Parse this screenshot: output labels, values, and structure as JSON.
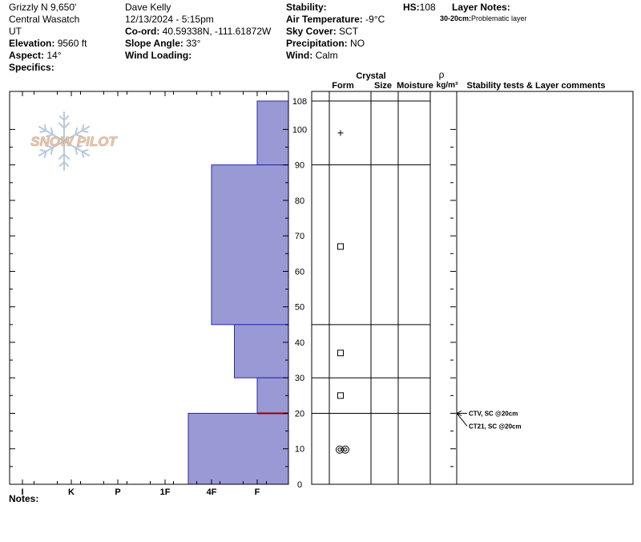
{
  "header": {
    "location": "Grizzly N 9,650'",
    "range": "Central Wasatch",
    "state": "UT",
    "elevation_label": "Elevation:",
    "elevation_value": "9560 ft",
    "aspect_label": "Aspect:",
    "aspect_value": "14°",
    "specifics_label": "Specifics:",
    "observer": "Dave Kelly",
    "datetime": "12/13/2024 - 5:15pm",
    "coord_label": "Co-ord:",
    "coord_value": "40.59338N, -111.61872W",
    "slope_label": "Slope Angle:",
    "slope_value": "33°",
    "wind_loading_label": "Wind Loading:",
    "stability_label": "Stability:",
    "air_temp_label": "Air Temperature:",
    "air_temp_value": "-9°C",
    "sky_label": "Sky Cover:",
    "sky_value": "SCT",
    "precip_label": "Precipitation:",
    "precip_value": "NO",
    "wind_label": "Wind:",
    "wind_value": "Calm",
    "hs_label": "HS:",
    "hs_value": "108",
    "layer_notes_label": "Layer Notes:",
    "layer_note_depth": "30-20cm:",
    "layer_note_text": "Problematic layer"
  },
  "columns": {
    "crystal": "Crystal",
    "form": "Form",
    "size": "Size",
    "moisture": "Moisture",
    "rho": "ρ",
    "density_unit": "kg/m³",
    "stability": "Stability tests & Layer comments"
  },
  "notes_label": "Notes:",
  "logo_text": "SNOW PILOT",
  "colors": {
    "layer_fill": "#9999d6",
    "layer_stroke": "#2a2aa8",
    "weak_layer_line": "#990000",
    "logo_text": "#e9c9b3",
    "logo_flake": "#b9c9dc"
  },
  "chart_data": {
    "type": "snow-profile",
    "hardness_scale": [
      "I",
      "K",
      "P",
      "1F",
      "4F",
      "F"
    ],
    "height_axis": {
      "ticks": [
        0,
        10,
        20,
        30,
        40,
        50,
        60,
        70,
        80,
        90,
        100,
        108
      ],
      "range": [
        0,
        108
      ],
      "unit": "cm"
    },
    "layers": [
      {
        "top": 108,
        "bottom": 90,
        "hardness": "F"
      },
      {
        "top": 90,
        "bottom": 45,
        "hardness": "4F"
      },
      {
        "top": 45,
        "bottom": 30,
        "hardness": "4F-F"
      },
      {
        "top": 30,
        "bottom": 20,
        "hardness": "F"
      },
      {
        "top": 20,
        "bottom": 0,
        "hardness": "1F-4F"
      }
    ],
    "layer_boundaries": [
      90,
      45,
      30,
      20
    ],
    "weak_layer_height": 20,
    "grain_forms": [
      {
        "height": 99,
        "form": "plus"
      },
      {
        "height": 67,
        "form": "square"
      },
      {
        "height": 37,
        "form": "square"
      },
      {
        "height": 25,
        "form": "square"
      },
      {
        "height": 10,
        "form": "double-circle"
      }
    ],
    "stability_tests": [
      {
        "height": 20,
        "label": "CTV, SC @20cm"
      },
      {
        "height": 20,
        "label": "CT21, SC @20cm"
      }
    ]
  }
}
